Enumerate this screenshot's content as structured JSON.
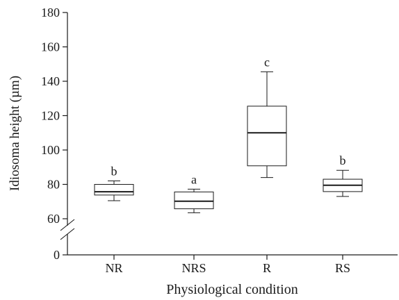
{
  "chart_data": {
    "type": "boxplot",
    "title": "",
    "xlabel": "Physiological condition",
    "ylabel": "Idiosoma height (µm)",
    "ylim": [
      60,
      180
    ],
    "yticks": [
      "0",
      "60",
      "80",
      "100",
      "120",
      "140",
      "160",
      "180"
    ],
    "axis_break": true,
    "grid": false,
    "categories": [
      "NR",
      "NRS",
      "R",
      "RS"
    ],
    "boxes": [
      {
        "category": "NR",
        "min": 70.5,
        "q1": 73.8,
        "median": 75.7,
        "q3": 80.0,
        "max": 82.0,
        "letter": "b"
      },
      {
        "category": "NRS",
        "min": 63.5,
        "q1": 65.8,
        "median": 70.2,
        "q3": 75.6,
        "max": 77.2,
        "letter": "a"
      },
      {
        "category": "R",
        "min": 84.0,
        "q1": 90.8,
        "median": 110.0,
        "q3": 125.5,
        "max": 145.5,
        "letter": "c"
      },
      {
        "category": "RS",
        "min": 73.0,
        "q1": 75.8,
        "median": 79.5,
        "q3": 83.0,
        "max": 88.2,
        "letter": "b"
      }
    ]
  }
}
